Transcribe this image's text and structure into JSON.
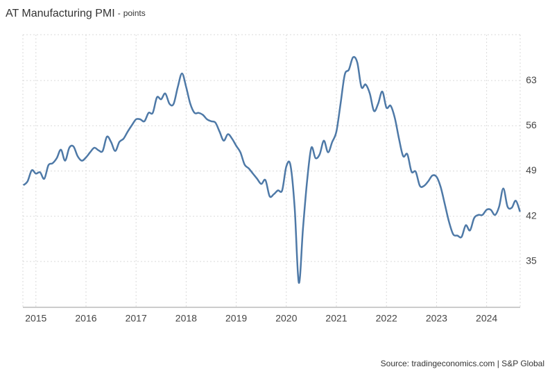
{
  "chart_data": {
    "type": "line",
    "title": "AT Manufacturing PMI",
    "subtitle": "points",
    "source": "Source: tradingeconomics.com | S&P Global",
    "x": [
      2014.75,
      2014.833,
      2014.917,
      2015.0,
      2015.083,
      2015.167,
      2015.25,
      2015.333,
      2015.417,
      2015.5,
      2015.583,
      2015.667,
      2015.75,
      2015.833,
      2015.917,
      2016.0,
      2016.083,
      2016.167,
      2016.25,
      2016.333,
      2016.417,
      2016.5,
      2016.583,
      2016.667,
      2016.75,
      2016.833,
      2016.917,
      2017.0,
      2017.083,
      2017.167,
      2017.25,
      2017.333,
      2017.417,
      2017.5,
      2017.583,
      2017.667,
      2017.75,
      2017.833,
      2017.917,
      2018.0,
      2018.083,
      2018.167,
      2018.25,
      2018.333,
      2018.417,
      2018.5,
      2018.583,
      2018.667,
      2018.75,
      2018.833,
      2018.917,
      2019.0,
      2019.083,
      2019.167,
      2019.25,
      2019.333,
      2019.417,
      2019.5,
      2019.583,
      2019.667,
      2019.75,
      2019.833,
      2019.917,
      2020.0,
      2020.083,
      2020.167,
      2020.25,
      2020.333,
      2020.417,
      2020.5,
      2020.583,
      2020.667,
      2020.75,
      2020.833,
      2020.917,
      2021.0,
      2021.083,
      2021.167,
      2021.25,
      2021.333,
      2021.417,
      2021.5,
      2021.583,
      2021.667,
      2021.75,
      2021.833,
      2021.917,
      2022.0,
      2022.083,
      2022.167,
      2022.25,
      2022.333,
      2022.417,
      2022.5,
      2022.583,
      2022.667,
      2022.75,
      2022.833,
      2022.917,
      2023.0,
      2023.083,
      2023.167,
      2023.25,
      2023.333,
      2023.417,
      2023.5,
      2023.583,
      2023.667,
      2023.75,
      2023.833,
      2023.917,
      2024.0,
      2024.083,
      2024.167,
      2024.25,
      2024.333,
      2024.417,
      2024.5,
      2024.583,
      2024.667
    ],
    "series": [
      {
        "name": "AT Manufacturing PMI",
        "color": "#4e79a7",
        "values": [
          46.8,
          47.4,
          49.1,
          48.6,
          48.8,
          47.8,
          49.9,
          50.2,
          51.0,
          52.3,
          50.6,
          52.6,
          52.8,
          51.3,
          50.6,
          51.1,
          51.9,
          52.6,
          52.2,
          52.1,
          54.3,
          53.5,
          52.1,
          53.5,
          54.0,
          55.1,
          56.1,
          57.0,
          57.0,
          56.7,
          58.0,
          58.0,
          60.4,
          60.1,
          61.0,
          59.4,
          59.4,
          62.0,
          64.1,
          62.0,
          59.4,
          58.0,
          58.0,
          57.7,
          57.0,
          56.7,
          56.5,
          55.1,
          53.7,
          54.7,
          54.0,
          52.9,
          51.9,
          50.0,
          49.4,
          48.6,
          47.8,
          47.0,
          47.6,
          45.1,
          45.4,
          46.0,
          46.0,
          49.7,
          49.9,
          43.3,
          31.7,
          40.1,
          47.6,
          52.6,
          51.0,
          51.6,
          53.7,
          51.9,
          53.5,
          55.1,
          59.4,
          63.9,
          64.7,
          66.6,
          65.8,
          62.0,
          62.4,
          61.0,
          58.3,
          59.4,
          61.3,
          58.8,
          59.1,
          57.2,
          54.0,
          51.3,
          51.6,
          48.9,
          48.9,
          46.7,
          46.7,
          47.4,
          48.3,
          48.1,
          46.5,
          43.8,
          41.1,
          39.2,
          39.0,
          38.8,
          40.6,
          39.8,
          41.7,
          42.2,
          42.2,
          43.0,
          43.0,
          42.2,
          43.5,
          46.3,
          43.5,
          43.3,
          44.4,
          42.7
        ]
      }
    ],
    "xlim": [
      2014.74,
      2024.67
    ],
    "xticks": [
      2015,
      2016,
      2017,
      2018,
      2019,
      2020,
      2021,
      2022,
      2023,
      2024
    ],
    "ylim": [
      27.9,
      70.1
    ],
    "yticks": [
      35,
      42,
      49,
      56,
      63
    ],
    "grid": true
  }
}
